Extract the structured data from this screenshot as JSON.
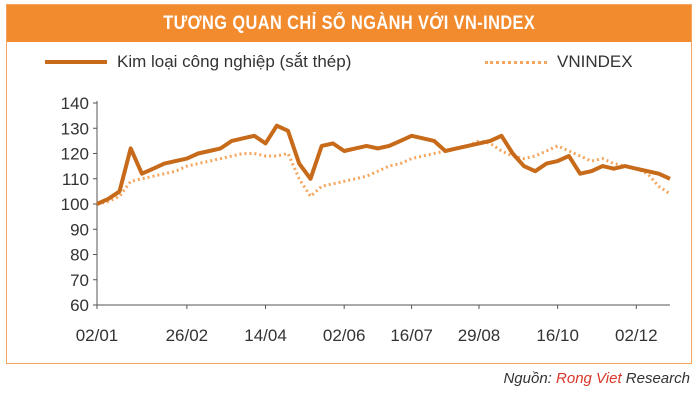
{
  "header": {
    "title": "TƯƠNG QUAN CHỈ SỐ NGÀNH VỚI VN-INDEX"
  },
  "source": {
    "prefix": "Nguồn: ",
    "brand": "Rong Viet",
    "suffix": " Research"
  },
  "colors": {
    "header_bg": "#f28a2e",
    "series_steel": "#c76a1a",
    "series_vnindex": "#f5a55c",
    "axis": "#555555"
  },
  "chart_data": {
    "type": "line",
    "title": "TƯƠNG QUAN CHỈ SỐ NGÀNH VỚI VN-INDEX",
    "xlabel": "",
    "ylabel": "",
    "ylim": [
      60,
      140
    ],
    "yticks": [
      60,
      70,
      80,
      90,
      100,
      110,
      120,
      130,
      140
    ],
    "x_tick_labels": [
      "02/01",
      "26/02",
      "14/04",
      "02/06",
      "16/07",
      "29/08",
      "16/10",
      "02/12"
    ],
    "grid": false,
    "legend_position": "top",
    "x": [
      "02/01",
      "09/01",
      "16/01",
      "23/01",
      "30/01",
      "06/02",
      "13/02",
      "20/02",
      "26/02",
      "05/03",
      "12/03",
      "19/03",
      "26/03",
      "02/04",
      "09/04",
      "14/04",
      "21/04",
      "28/04",
      "05/05",
      "12/05",
      "19/05",
      "26/05",
      "02/06",
      "09/06",
      "16/06",
      "23/06",
      "30/06",
      "07/07",
      "16/07",
      "23/07",
      "30/07",
      "06/08",
      "13/08",
      "20/08",
      "29/08",
      "05/09",
      "12/09",
      "19/09",
      "26/09",
      "03/10",
      "10/10",
      "16/10",
      "23/10",
      "30/10",
      "06/11",
      "13/11",
      "20/11",
      "27/11",
      "02/12",
      "09/12",
      "16/12",
      "23/12"
    ],
    "series": [
      {
        "name": "Kim loại công nghiệp (sắt thép)",
        "style": "solid",
        "values": [
          100,
          102,
          105,
          122,
          112,
          114,
          116,
          117,
          118,
          120,
          121,
          122,
          125,
          126,
          127,
          124,
          131,
          129,
          116,
          110,
          123,
          124,
          121,
          122,
          123,
          122,
          123,
          125,
          127,
          126,
          125,
          121,
          122,
          123,
          124,
          125,
          127,
          120,
          115,
          113,
          116,
          117,
          119,
          112,
          113,
          115,
          114,
          115,
          114,
          113,
          112,
          110
        ]
      },
      {
        "name": "VNINDEX",
        "style": "dotted",
        "values": [
          100,
          101,
          103,
          109,
          110,
          111,
          112,
          113,
          115,
          116,
          117,
          118,
          119,
          120,
          120,
          119,
          119,
          120,
          110,
          103,
          107,
          108,
          109,
          110,
          111,
          113,
          115,
          116,
          118,
          119,
          120,
          121,
          122,
          123,
          125,
          124,
          121,
          119,
          118,
          119,
          121,
          123,
          121,
          119,
          117,
          118,
          116,
          115,
          114,
          112,
          107,
          104
        ]
      }
    ]
  },
  "legend": [
    {
      "label": "Kim loại công nghiệp (sắt thép)"
    },
    {
      "label": "VNINDEX"
    }
  ]
}
